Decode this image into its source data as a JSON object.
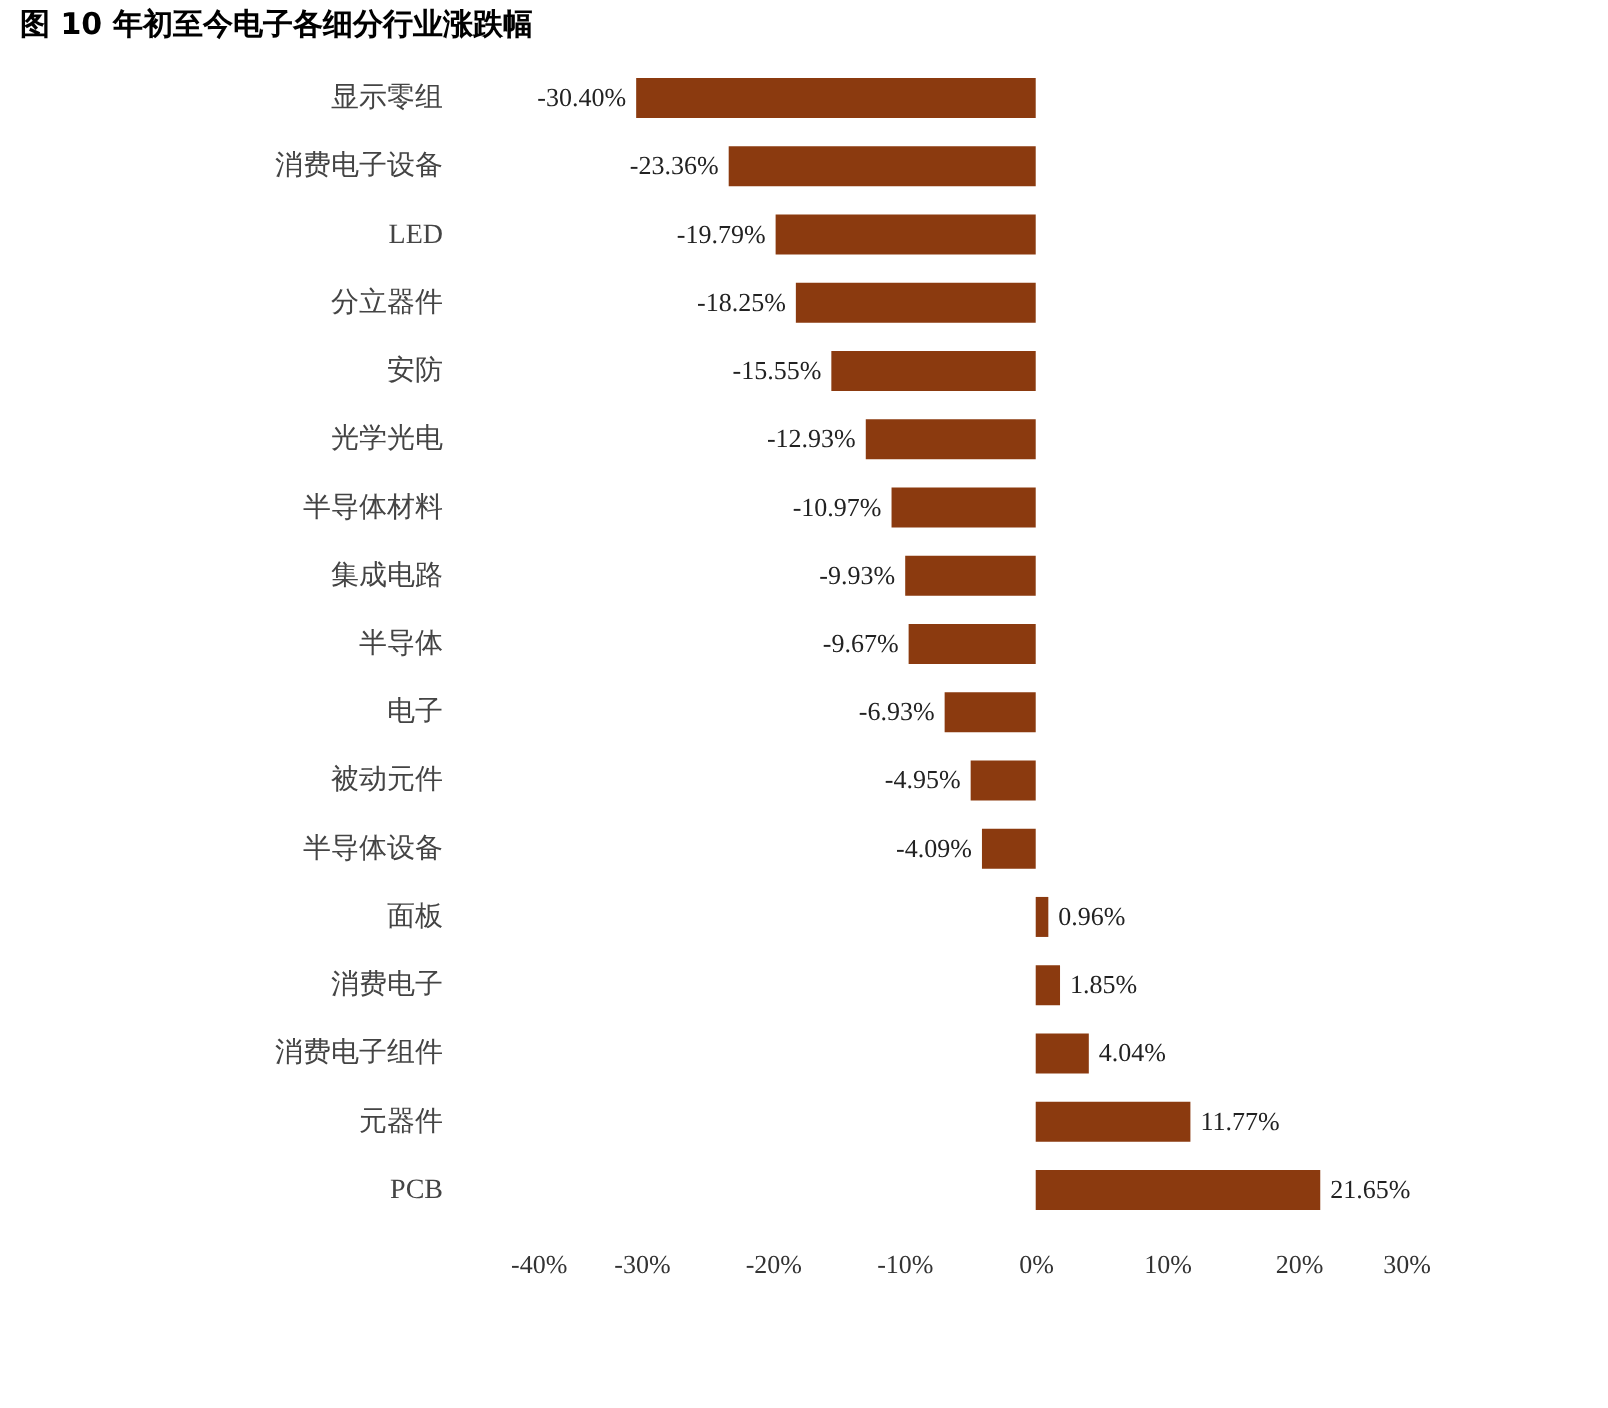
{
  "chart_data": {
    "type": "bar",
    "orientation": "horizontal",
    "title": "图 10 年初至今电子各细分行业涨跌幅",
    "categories": [
      "显示零组",
      "消费电子设备",
      "LED",
      "分立器件",
      "安防",
      "光学光电",
      "半导体材料",
      "集成电路",
      "半导体",
      "电子",
      "被动元件",
      "半导体设备",
      "面板",
      "消费电子",
      "消费电子组件",
      "元器件",
      "PCB"
    ],
    "values": [
      -30.4,
      -23.36,
      -19.79,
      -18.25,
      -15.55,
      -12.93,
      -10.97,
      -9.93,
      -9.67,
      -6.93,
      -4.95,
      -4.09,
      0.96,
      1.85,
      4.04,
      11.77,
      21.65
    ],
    "value_labels": [
      "-30.40%",
      "-23.36%",
      "-19.79%",
      "-18.25%",
      "-15.55%",
      "-12.93%",
      "-10.97%",
      "-9.93%",
      "-9.67%",
      "-6.93%",
      "-4.95%",
      "-4.09%",
      "0.96%",
      "1.85%",
      "4.04%",
      "11.77%",
      "21.65%"
    ],
    "color": "#8b3a0f",
    "xlim": [
      -40,
      30
    ],
    "xticks": [
      {
        "value": -40,
        "label": "-40%"
      },
      {
        "value": -30,
        "label": "-30%"
      },
      {
        "value": -20,
        "label": "-20%"
      },
      {
        "value": -10,
        "label": "-10%"
      },
      {
        "value": 0,
        "label": "0%"
      },
      {
        "value": 10,
        "label": "10%"
      },
      {
        "value": 20,
        "label": "20%"
      },
      {
        "value": 30,
        "label": "30%"
      }
    ],
    "grid": false
  }
}
